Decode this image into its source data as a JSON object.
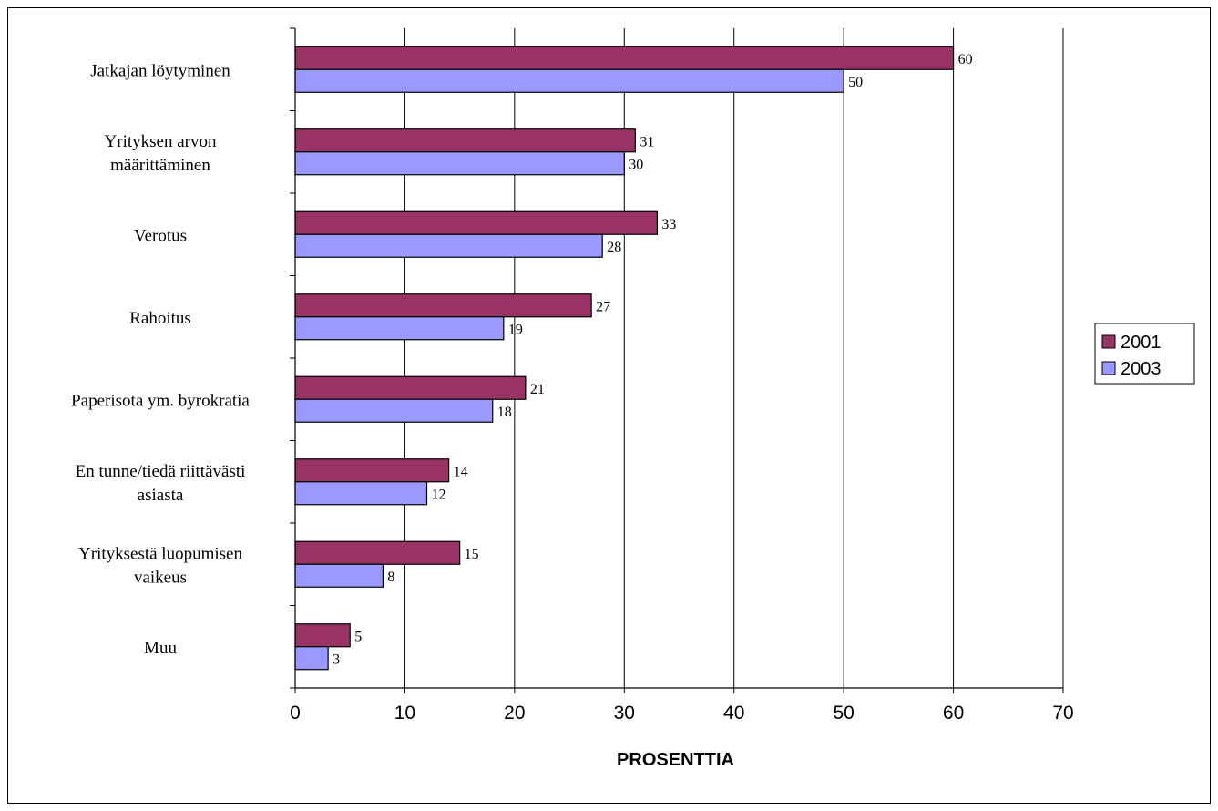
{
  "chart_data": {
    "type": "bar",
    "orientation": "horizontal",
    "categories": [
      [
        "Jatkajan löytyminen"
      ],
      [
        "Yrityksen arvon",
        "määrittäminen"
      ],
      [
        "Verotus"
      ],
      [
        "Rahoitus"
      ],
      [
        "Paperisota ym. byrokratia"
      ],
      [
        "En tunne/tiedä riittävästi",
        "asiasta"
      ],
      [
        "Yrityksestä luopumisen",
        "vaikeus"
      ],
      [
        "Muu"
      ]
    ],
    "series": [
      {
        "name": "2001",
        "color": "#993366",
        "values": [
          60,
          31,
          33,
          27,
          21,
          14,
          15,
          5
        ]
      },
      {
        "name": "2003",
        "color": "#9999ff",
        "values": [
          50,
          30,
          28,
          19,
          18,
          12,
          8,
          3
        ]
      }
    ],
    "xlabel": "PROSENTTIA",
    "ylabel": "",
    "xlim": [
      0,
      70
    ],
    "xticks": [
      0,
      10,
      20,
      30,
      40,
      50,
      60,
      70
    ],
    "grid": "vertical",
    "legend": "right"
  }
}
